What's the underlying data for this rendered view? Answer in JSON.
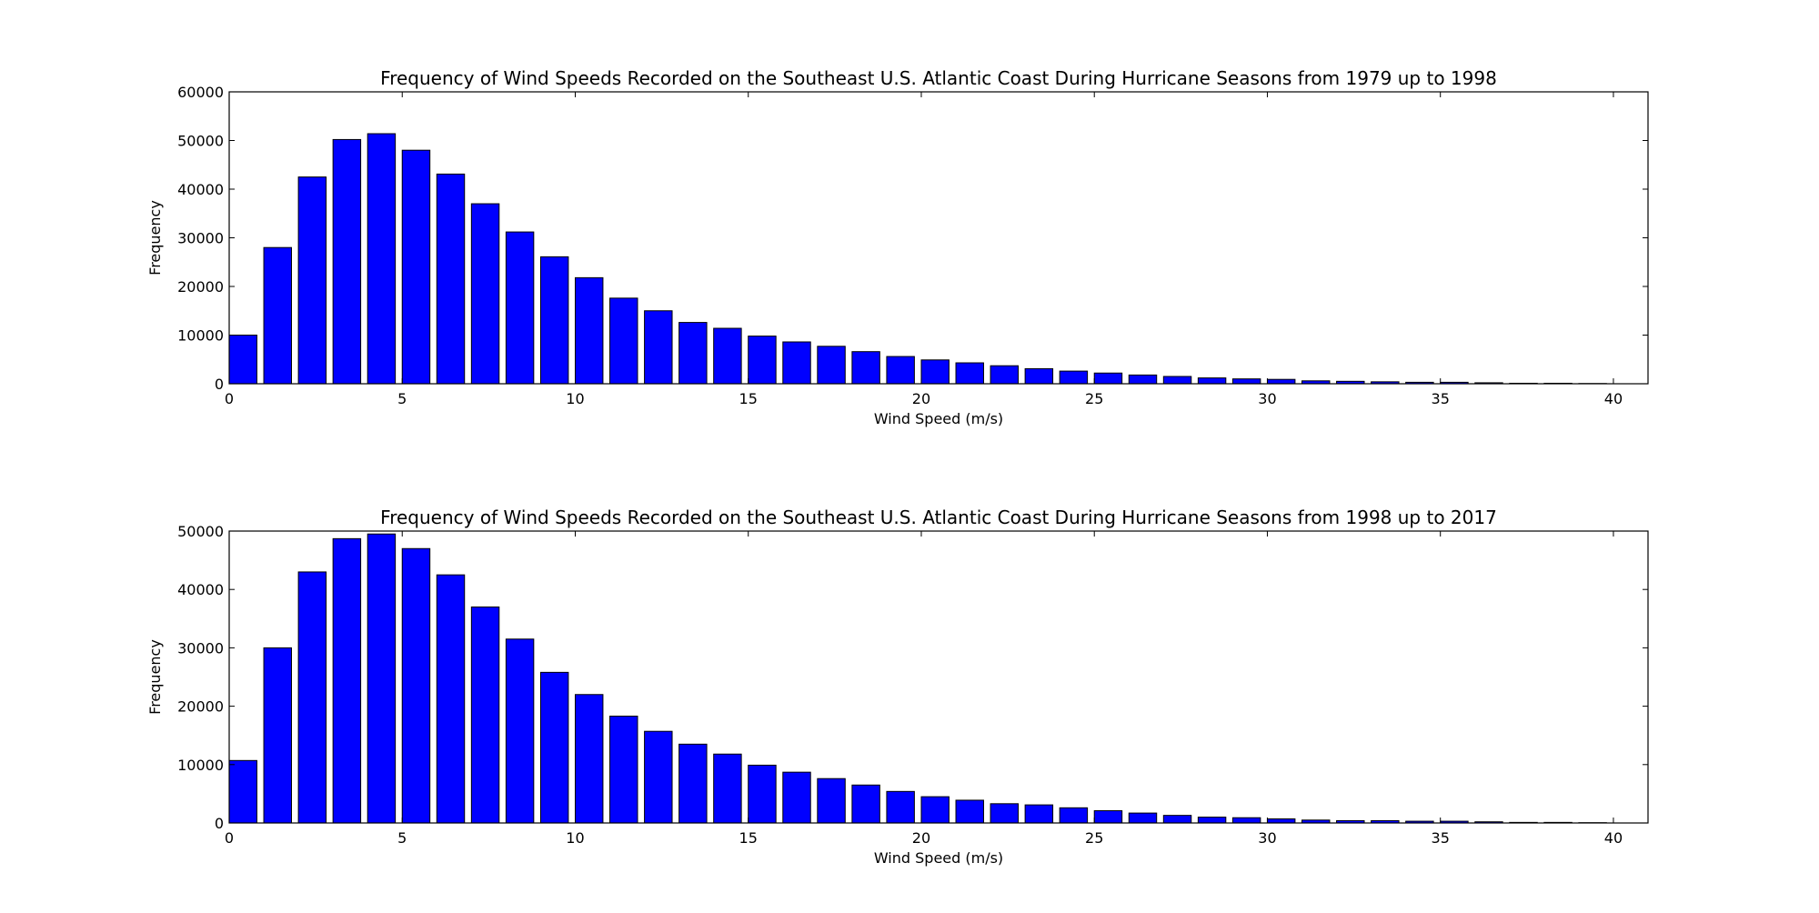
{
  "chart_data": [
    {
      "type": "bar",
      "title": "Frequency of Wind Speeds Recorded on the Southeast U.S. Atlantic Coast During Hurricane Seasons from 1979 up to 1998",
      "xlabel": "Wind Speed (m/s)",
      "ylabel": "Frequency",
      "xlim": [
        0,
        41
      ],
      "ylim": [
        0,
        60000
      ],
      "x_ticks": [
        "0",
        "5",
        "10",
        "15",
        "20",
        "25",
        "30",
        "35",
        "40"
      ],
      "y_ticks": [
        "0",
        "10000",
        "20000",
        "30000",
        "40000",
        "50000",
        "60000"
      ],
      "grid": false,
      "bar_color": "#0000ff",
      "bar_width": 0.8,
      "x": [
        0,
        1,
        2,
        3,
        4,
        5,
        6,
        7,
        8,
        9,
        10,
        11,
        12,
        13,
        14,
        15,
        16,
        17,
        18,
        19,
        20,
        21,
        22,
        23,
        24,
        25,
        26,
        27,
        28,
        29,
        30,
        31,
        32,
        33,
        34,
        35,
        36,
        37,
        38,
        39
      ],
      "values": [
        10000,
        28000,
        42500,
        50200,
        51400,
        48000,
        43100,
        37000,
        31200,
        26100,
        21800,
        17600,
        15000,
        12600,
        11400,
        9800,
        8600,
        7700,
        6600,
        5600,
        4900,
        4300,
        3700,
        3100,
        2600,
        2200,
        1800,
        1500,
        1200,
        1000,
        900,
        600,
        500,
        400,
        300,
        300,
        200,
        100,
        100,
        50
      ]
    },
    {
      "type": "bar",
      "title": "Frequency of Wind Speeds Recorded on the Southeast U.S. Atlantic Coast During Hurricane Seasons from 1998 up to 2017",
      "xlabel": "Wind Speed (m/s)",
      "ylabel": "Frequency",
      "xlim": [
        0,
        41
      ],
      "ylim": [
        0,
        50000
      ],
      "x_ticks": [
        "0",
        "5",
        "10",
        "15",
        "20",
        "25",
        "30",
        "35",
        "40"
      ],
      "y_ticks": [
        "0",
        "10000",
        "20000",
        "30000",
        "40000",
        "50000"
      ],
      "grid": false,
      "bar_color": "#0000ff",
      "bar_width": 0.8,
      "x": [
        0,
        1,
        2,
        3,
        4,
        5,
        6,
        7,
        8,
        9,
        10,
        11,
        12,
        13,
        14,
        15,
        16,
        17,
        18,
        19,
        20,
        21,
        22,
        23,
        24,
        25,
        26,
        27,
        28,
        29,
        30,
        31,
        32,
        33,
        34,
        35,
        36,
        37,
        38,
        39
      ],
      "values": [
        10700,
        30000,
        43000,
        48700,
        49500,
        47000,
        42500,
        37000,
        31500,
        25800,
        22000,
        18300,
        15700,
        13500,
        11800,
        9900,
        8700,
        7600,
        6500,
        5400,
        4500,
        3900,
        3300,
        3100,
        2600,
        2100,
        1700,
        1300,
        1000,
        900,
        700,
        500,
        400,
        400,
        300,
        300,
        200,
        100,
        100,
        50
      ]
    }
  ]
}
